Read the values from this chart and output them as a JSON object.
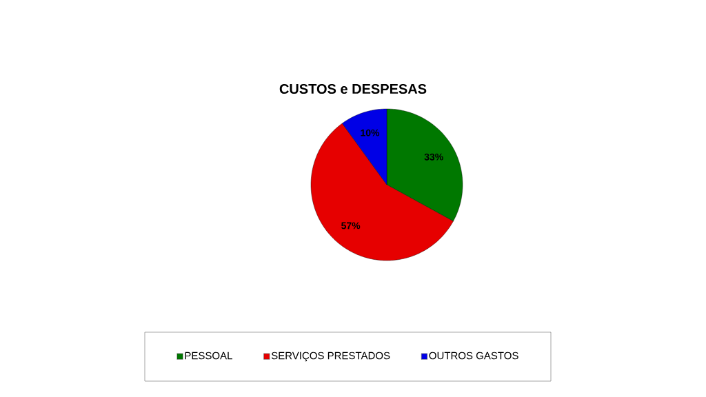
{
  "chart_data": {
    "type": "pie",
    "title": "CUSTOS e DESPESAS",
    "categories": [
      "PESSOAL",
      "SERVIÇOS PRESTADOS",
      "OUTROS GASTOS"
    ],
    "values": [
      33,
      57,
      10
    ],
    "colors": [
      "#007800",
      "#e60000",
      "#0000e6"
    ],
    "value_labels": [
      "33%",
      "57%",
      "10%"
    ],
    "legend": "bottom"
  }
}
